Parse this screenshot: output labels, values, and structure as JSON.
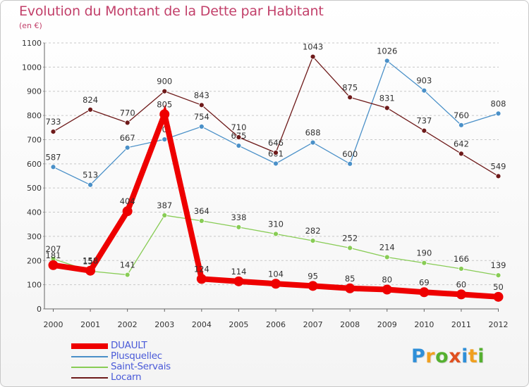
{
  "chart_data": {
    "type": "line",
    "title": "Evolution du Montant de la Dette par Habitant",
    "subtitle": "(en €)",
    "xlabel": "",
    "ylabel": "",
    "ylim": [
      0,
      1100
    ],
    "yticks": [
      0,
      100,
      200,
      300,
      400,
      500,
      600,
      700,
      800,
      900,
      1000,
      1100
    ],
    "x": [
      "2000",
      "2001",
      "2002",
      "2003",
      "2004",
      "2005",
      "2006",
      "2007",
      "2008",
      "2009",
      "2010",
      "2011",
      "2012"
    ],
    "grid": "horizontal-dashed",
    "legend_position": "bottom-left",
    "series": [
      {
        "name": "DUAULT",
        "color": "#ee0000",
        "emphasis": true,
        "values": [
          181,
          158,
          404,
          805,
          124,
          114,
          104,
          95,
          85,
          80,
          69,
          60,
          50
        ]
      },
      {
        "name": "Plusquellec",
        "color": "#4a90c8",
        "values": [
          587,
          513,
          667,
          701,
          754,
          675,
          601,
          688,
          600,
          1026,
          903,
          760,
          808
        ]
      },
      {
        "name": "Saint-Servais",
        "color": "#88cc55",
        "values": [
          207,
          156,
          141,
          387,
          364,
          338,
          310,
          282,
          252,
          214,
          190,
          166,
          139
        ]
      },
      {
        "name": "Locarn",
        "color": "#6e1a1a",
        "values": [
          733,
          824,
          770,
          900,
          843,
          710,
          646,
          1043,
          875,
          831,
          737,
          642,
          549
        ]
      }
    ]
  },
  "branding": {
    "logo_text": "Proxiti",
    "logo_colors": [
      "#2f8fd8",
      "#f0a020",
      "#55b030",
      "#e05020",
      "#2f8fd8",
      "#f0a020",
      "#55b030"
    ]
  }
}
